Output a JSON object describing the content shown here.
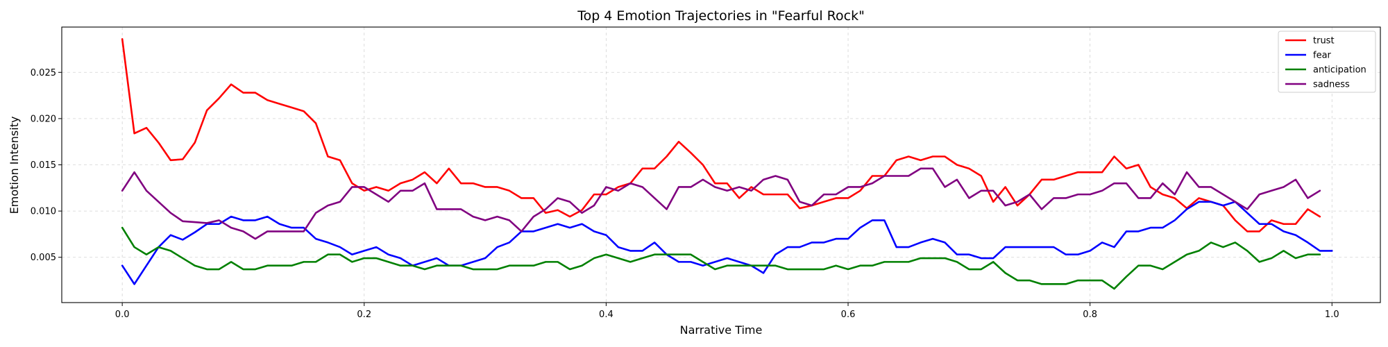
{
  "chart_data": {
    "type": "line",
    "title": "Top 4 Emotion Trajectories in \"Fearful Rock\"",
    "xlabel": "Narrative Time",
    "ylabel": "Emotion Intensity",
    "xlim": [
      -0.05,
      1.04
    ],
    "ylim": [
      0.0001,
      0.0299
    ],
    "x_ticks": [
      0.0,
      0.2,
      0.4,
      0.6,
      0.8,
      1.0
    ],
    "x_tick_labels": [
      "0.0",
      "0.2",
      "0.4",
      "0.6",
      "0.8",
      "1.0"
    ],
    "y_ticks": [
      0.005,
      0.01,
      0.015,
      0.02,
      0.025
    ],
    "y_tick_labels": [
      "0.005",
      "0.010",
      "0.015",
      "0.020",
      "0.025"
    ],
    "grid": true,
    "legend_position": "top-right",
    "x_start": 0.0,
    "x_step": 0.01,
    "series": [
      {
        "name": "trust",
        "color": "#ff0000",
        "values": [
          0.0286,
          0.0184,
          0.019,
          0.0174,
          0.0155,
          0.0156,
          0.0174,
          0.0209,
          0.0222,
          0.0237,
          0.0228,
          0.0228,
          0.022,
          0.0216,
          0.0212,
          0.0208,
          0.0195,
          0.0159,
          0.0155,
          0.013,
          0.0122,
          0.0126,
          0.0122,
          0.013,
          0.0134,
          0.0142,
          0.013,
          0.0146,
          0.013,
          0.013,
          0.0126,
          0.0126,
          0.0122,
          0.0114,
          0.0114,
          0.0098,
          0.0101,
          0.0094,
          0.0101,
          0.0118,
          0.0118,
          0.0126,
          0.013,
          0.0146,
          0.0146,
          0.0159,
          0.0175,
          0.0163,
          0.015,
          0.013,
          0.013,
          0.0114,
          0.0126,
          0.0118,
          0.0118,
          0.0118,
          0.0103,
          0.0106,
          0.011,
          0.0114,
          0.0114,
          0.0122,
          0.0138,
          0.0138,
          0.0155,
          0.0159,
          0.0155,
          0.0159,
          0.0159,
          0.015,
          0.0146,
          0.0138,
          0.011,
          0.0126,
          0.0106,
          0.0118,
          0.0134,
          0.0134,
          0.0138,
          0.0142,
          0.0142,
          0.0142,
          0.0159,
          0.0146,
          0.015,
          0.0126,
          0.0118,
          0.0114,
          0.0103,
          0.0114,
          0.011,
          0.0106,
          0.009,
          0.0078,
          0.0078,
          0.009,
          0.0086,
          0.0086,
          0.0102,
          0.0094
        ]
      },
      {
        "name": "fear",
        "color": "#0000ff",
        "values": [
          0.0041,
          0.0021,
          0.0041,
          0.0061,
          0.0074,
          0.0069,
          0.0077,
          0.0086,
          0.0086,
          0.0094,
          0.009,
          0.009,
          0.0094,
          0.0086,
          0.0082,
          0.0082,
          0.007,
          0.0066,
          0.0061,
          0.0053,
          0.0057,
          0.0061,
          0.0053,
          0.0049,
          0.0041,
          0.0045,
          0.0049,
          0.0041,
          0.0041,
          0.0045,
          0.0049,
          0.0061,
          0.0066,
          0.0078,
          0.0078,
          0.0082,
          0.0086,
          0.0082,
          0.0086,
          0.0078,
          0.0074,
          0.0061,
          0.0057,
          0.0057,
          0.0066,
          0.0053,
          0.0045,
          0.0045,
          0.0041,
          0.0045,
          0.0049,
          0.0045,
          0.0041,
          0.0033,
          0.0053,
          0.0061,
          0.0061,
          0.0066,
          0.0066,
          0.007,
          0.007,
          0.0082,
          0.009,
          0.009,
          0.0061,
          0.0061,
          0.0066,
          0.007,
          0.0066,
          0.0053,
          0.0053,
          0.0049,
          0.0049,
          0.0061,
          0.0061,
          0.0061,
          0.0061,
          0.0061,
          0.0053,
          0.0053,
          0.0057,
          0.0066,
          0.0061,
          0.0078,
          0.0078,
          0.0082,
          0.0082,
          0.009,
          0.0102,
          0.011,
          0.011,
          0.0106,
          0.011,
          0.0098,
          0.0086,
          0.0086,
          0.0078,
          0.0074,
          0.0066,
          0.0057,
          0.0057
        ]
      },
      {
        "name": "anticipation",
        "color": "#008000",
        "values": [
          0.0082,
          0.0061,
          0.0053,
          0.0061,
          0.0057,
          0.0049,
          0.0041,
          0.0037,
          0.0037,
          0.0045,
          0.0037,
          0.0037,
          0.0041,
          0.0041,
          0.0041,
          0.0045,
          0.0045,
          0.0053,
          0.0053,
          0.0045,
          0.0049,
          0.0049,
          0.0045,
          0.0041,
          0.0041,
          0.0037,
          0.0041,
          0.0041,
          0.0041,
          0.0037,
          0.0037,
          0.0037,
          0.0041,
          0.0041,
          0.0041,
          0.0045,
          0.0045,
          0.0037,
          0.0041,
          0.0049,
          0.0053,
          0.0049,
          0.0045,
          0.0049,
          0.0053,
          0.0053,
          0.0053,
          0.0053,
          0.0045,
          0.0037,
          0.0041,
          0.0041,
          0.0041,
          0.0041,
          0.0041,
          0.0037,
          0.0037,
          0.0037,
          0.0037,
          0.0041,
          0.0037,
          0.0041,
          0.0041,
          0.0045,
          0.0045,
          0.0045,
          0.0049,
          0.0049,
          0.0049,
          0.0045,
          0.0037,
          0.0037,
          0.0045,
          0.0033,
          0.0025,
          0.0025,
          0.0021,
          0.0021,
          0.0021,
          0.0025,
          0.0025,
          0.0025,
          0.0016,
          0.0029,
          0.0041,
          0.0041,
          0.0037,
          0.0045,
          0.0053,
          0.0057,
          0.0066,
          0.0061,
          0.0066,
          0.0057,
          0.0045,
          0.0049,
          0.0057,
          0.0049,
          0.0053,
          0.0053
        ]
      },
      {
        "name": "sadness",
        "color": "#800080",
        "values": [
          0.0122,
          0.0142,
          0.0122,
          0.011,
          0.0098,
          0.0089,
          0.0088,
          0.0087,
          0.009,
          0.0082,
          0.0078,
          0.007,
          0.0078,
          0.0078,
          0.0078,
          0.0078,
          0.0098,
          0.0106,
          0.011,
          0.0126,
          0.0126,
          0.0118,
          0.011,
          0.0122,
          0.0122,
          0.013,
          0.0102,
          0.0102,
          0.0102,
          0.0094,
          0.009,
          0.0094,
          0.009,
          0.0078,
          0.0094,
          0.0102,
          0.0114,
          0.011,
          0.0098,
          0.0106,
          0.0126,
          0.0122,
          0.013,
          0.0126,
          0.0114,
          0.0102,
          0.0126,
          0.0126,
          0.0134,
          0.0126,
          0.0122,
          0.0126,
          0.0122,
          0.0134,
          0.0138,
          0.0134,
          0.011,
          0.0106,
          0.0118,
          0.0118,
          0.0126,
          0.0126,
          0.013,
          0.0138,
          0.0138,
          0.0138,
          0.0146,
          0.0146,
          0.0126,
          0.0134,
          0.0114,
          0.0122,
          0.0122,
          0.0106,
          0.011,
          0.0118,
          0.0102,
          0.0114,
          0.0114,
          0.0118,
          0.0118,
          0.0122,
          0.013,
          0.013,
          0.0114,
          0.0114,
          0.013,
          0.0118,
          0.0142,
          0.0126,
          0.0126,
          0.0118,
          0.011,
          0.0102,
          0.0118,
          0.0122,
          0.0126,
          0.0134,
          0.0114,
          0.0122
        ]
      }
    ]
  }
}
